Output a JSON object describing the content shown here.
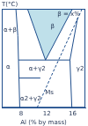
{
  "chart_data": {
    "type": "line",
    "y_label": "T(°C)",
    "x_label": "Al (% by mass)",
    "xlim": [
      5,
      18
    ],
    "xticks": [
      8,
      12,
      16
    ],
    "ylim": [
      0,
      1100
    ],
    "tick_labels": "x",
    "grid": false,
    "series": [
      {
        "type": "area",
        "color": "#bfe0ea",
        "line_style": "solid",
        "x": [
          9,
          11.8,
          16
        ],
        "values": [
          1100,
          530,
          1100
        ]
      },
      {
        "color": "#1f4e8c",
        "line_style": "solid",
        "x": [
          7.2,
          7.5,
          7.6,
          7.8
        ],
        "values": [
          1100,
          800,
          530,
          0
        ]
      },
      {
        "color": "#1f4e8c",
        "line_style": "solid",
        "x": [
          7.6,
          15.6
        ],
        "values": [
          530,
          530
        ]
      },
      {
        "color": "#1f4e8c",
        "line_style": "solid",
        "x": [
          16.8,
          15.6,
          15.9
        ],
        "values": [
          1000,
          530,
          0
        ]
      },
      {
        "color": "#1f4e8c",
        "line_style": "solid",
        "x": [
          7.7,
          11
        ],
        "values": [
          330,
          330
        ]
      },
      {
        "color": "#1f4e8c",
        "line_style": "dashed",
        "x": [
          10.5,
          13,
          17.5
        ],
        "values": [
          0,
          400,
          1100
        ]
      }
    ],
    "annotations": [
      {
        "text": "α+β",
        "x": 6.3,
        "y": 860
      },
      {
        "text": "β",
        "x": 12.9,
        "y": 900
      },
      {
        "text": "β = x%",
        "x": 15.4,
        "y": 1040
      },
      {
        "text": "α",
        "x": 6.0,
        "y": 450
      },
      {
        "text": "α+γ2",
        "x": 10.5,
        "y": 430
      },
      {
        "text": "γ2",
        "x": 17.2,
        "y": 430
      },
      {
        "text": "α2+γ2",
        "x": 9.5,
        "y": 100
      },
      {
        "text": "Ms",
        "x": 12.4,
        "y": 170
      }
    ]
  }
}
